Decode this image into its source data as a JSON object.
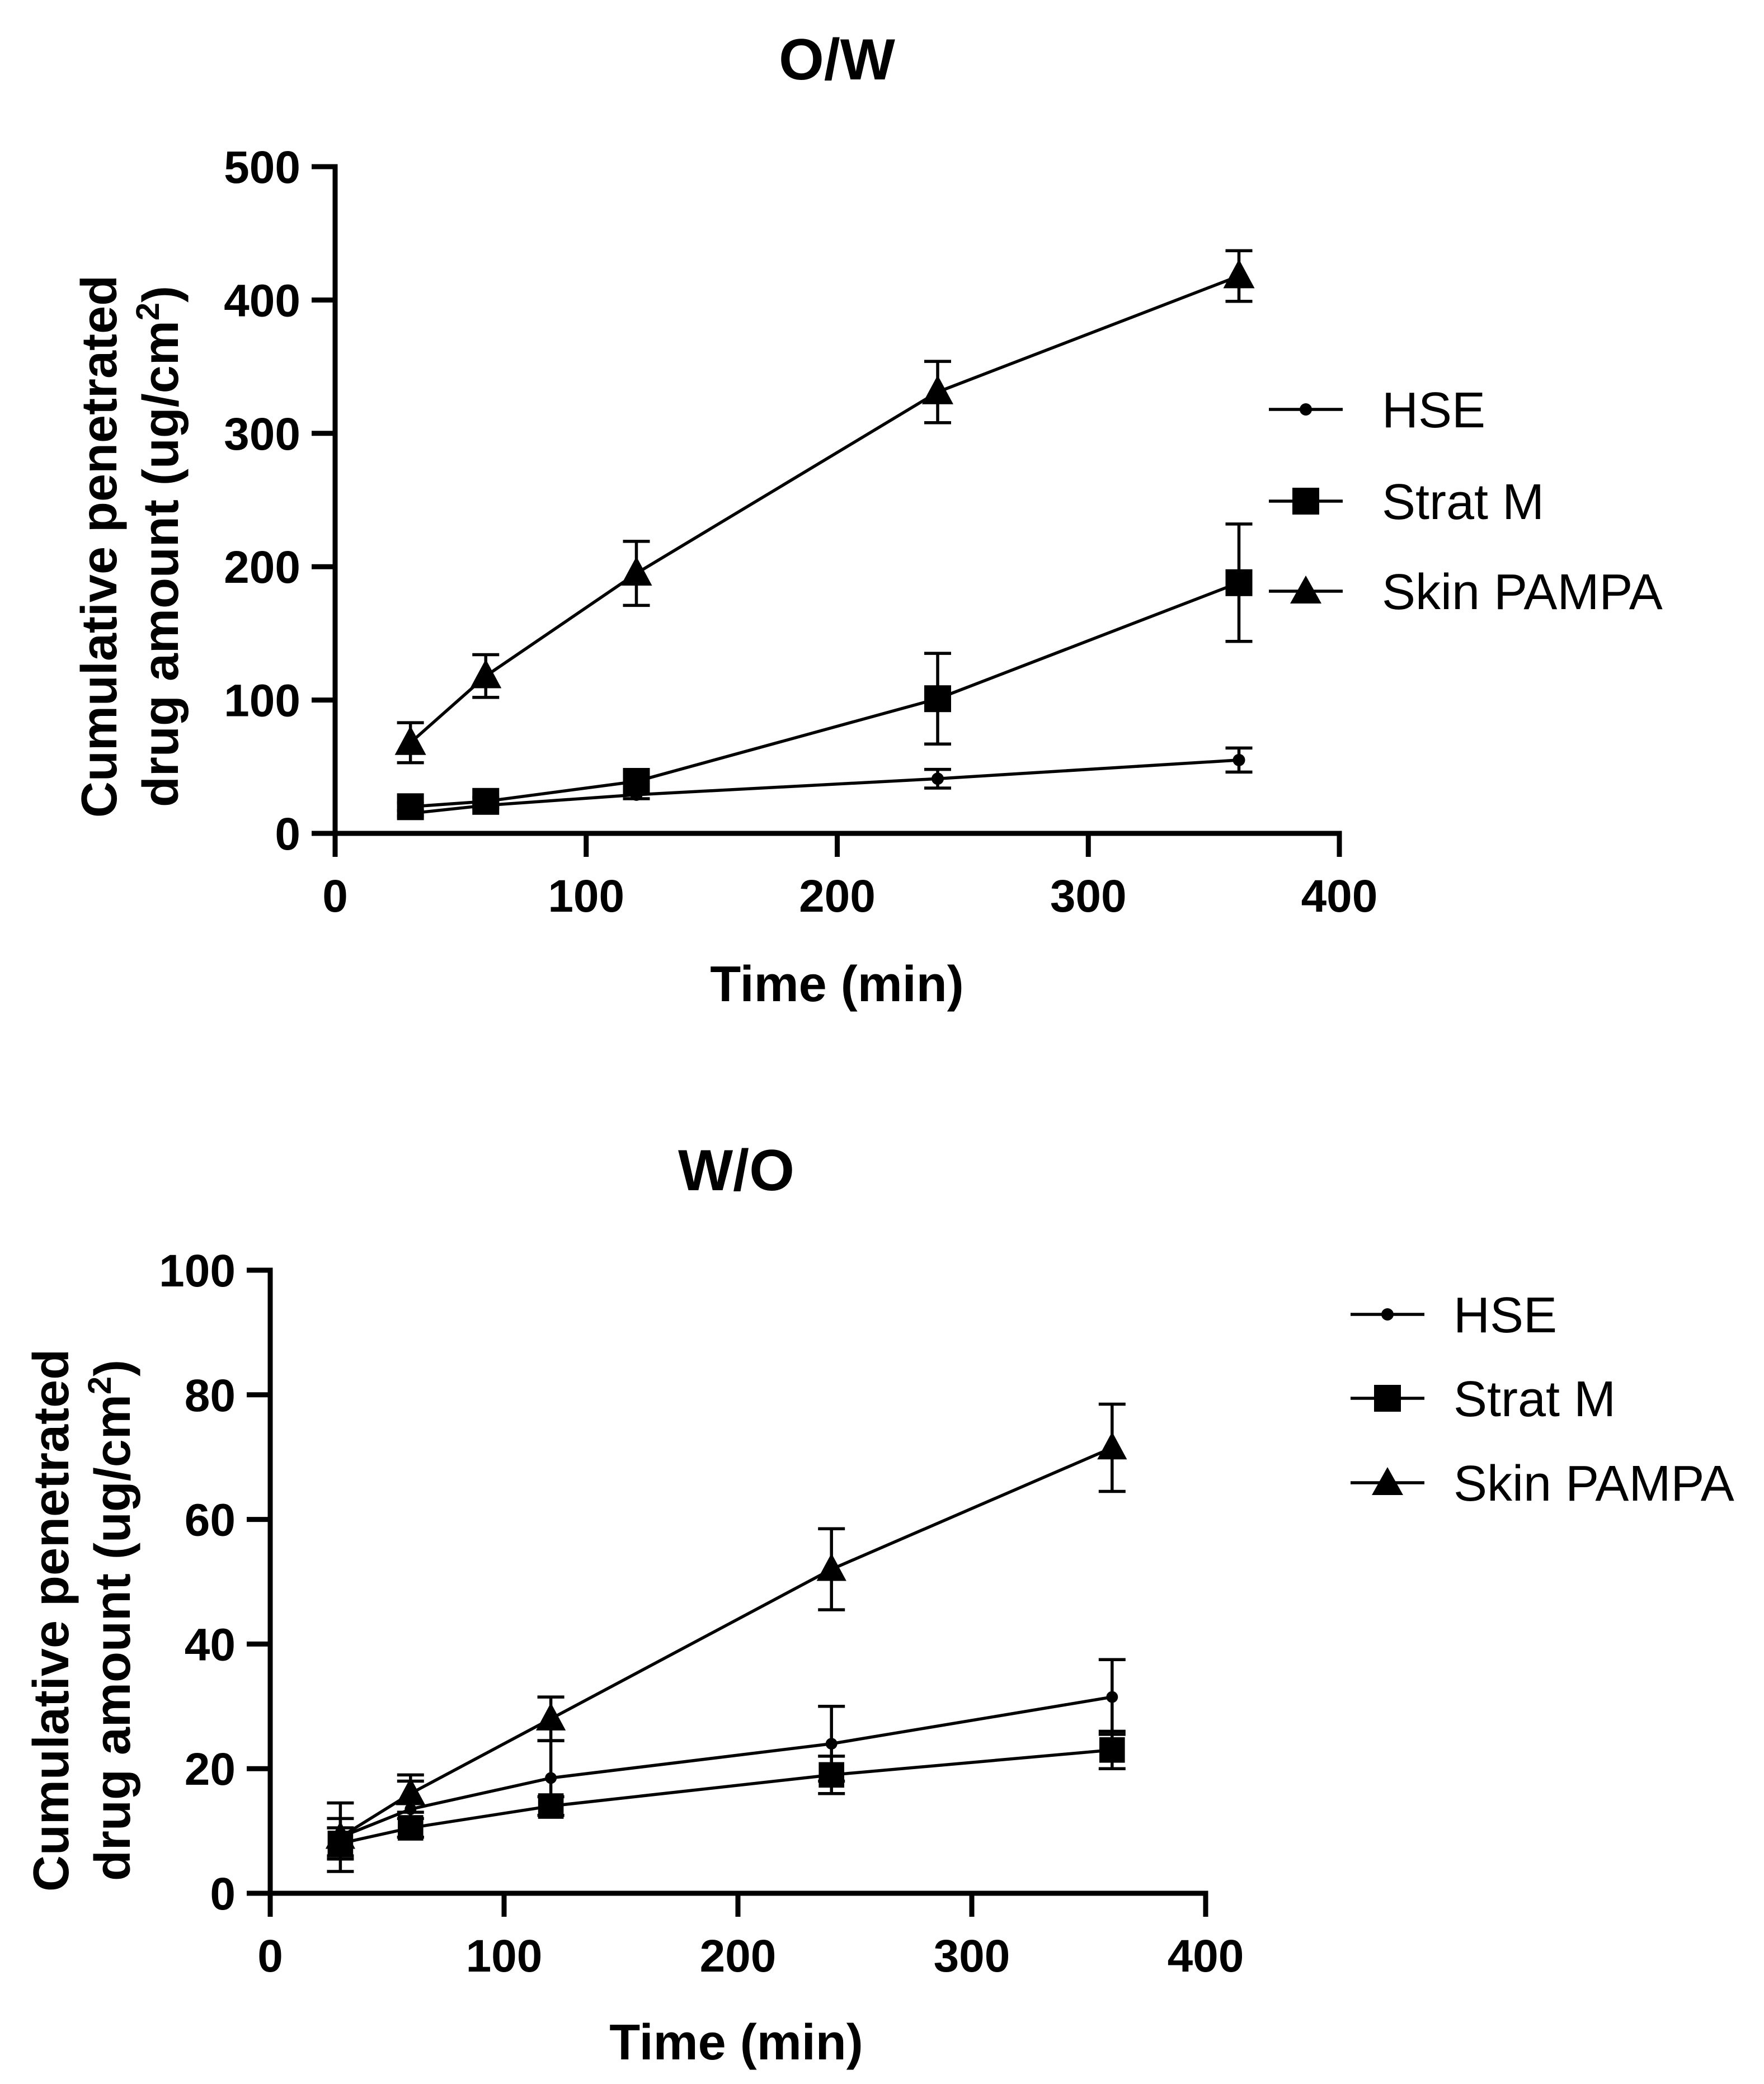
{
  "chart_data": [
    {
      "type": "line",
      "title": "O/W",
      "xlabel": "Time (min)",
      "ylabel_line1": "Cumulative penetrated",
      "ylabel_line2": "drug amount (ug/cm",
      "ylabel_sup": "2",
      "ylabel_close": ")",
      "xlim": [
        0,
        400
      ],
      "ylim": [
        0,
        500
      ],
      "xticks": [
        0,
        100,
        200,
        300,
        400
      ],
      "yticks": [
        0,
        100,
        200,
        300,
        400,
        500
      ],
      "x": [
        30,
        60,
        120,
        240,
        360
      ],
      "series": [
        {
          "name": "HSE",
          "marker": "circle",
          "values": [
            15,
            21,
            29,
            41,
            55
          ],
          "errors": [
            2,
            2,
            3,
            7,
            9
          ]
        },
        {
          "name": "Strat M",
          "marker": "square",
          "values": [
            20,
            24,
            39,
            101,
            188
          ],
          "errors": [
            3,
            3,
            8,
            34,
            44
          ]
        },
        {
          "name": "Skin PAMPA",
          "marker": "triangle",
          "values": [
            68,
            118,
            195,
            331,
            418
          ],
          "errors": [
            15,
            16,
            24,
            23,
            19
          ]
        }
      ]
    },
    {
      "type": "line",
      "title": "W/O",
      "xlabel": "Time (min)",
      "ylabel_line1": "Cumulative penetrated",
      "ylabel_line2": "drug amount (ug/cm",
      "ylabel_sup": "2",
      "ylabel_close": ")",
      "xlim": [
        0,
        400
      ],
      "ylim": [
        0,
        100
      ],
      "xticks": [
        0,
        100,
        200,
        300,
        400
      ],
      "yticks": [
        0,
        20,
        40,
        60,
        80,
        100
      ],
      "x": [
        30,
        60,
        120,
        240,
        360
      ],
      "series": [
        {
          "name": "HSE",
          "marker": "circle",
          "values": [
            9,
            13.5,
            18.5,
            24,
            31.5
          ],
          "errors": [
            5.5,
            4.5,
            6,
            6,
            6
          ]
        },
        {
          "name": "Strat M",
          "marker": "square",
          "values": [
            8,
            10.5,
            14,
            19,
            23
          ],
          "errors": [
            2.5,
            1.5,
            1.5,
            3,
            3
          ]
        },
        {
          "name": "Skin PAMPA",
          "marker": "triangle",
          "values": [
            9,
            16,
            28,
            52,
            71.5
          ],
          "errors": [
            3,
            3,
            3.5,
            6.5,
            7
          ]
        }
      ]
    }
  ]
}
